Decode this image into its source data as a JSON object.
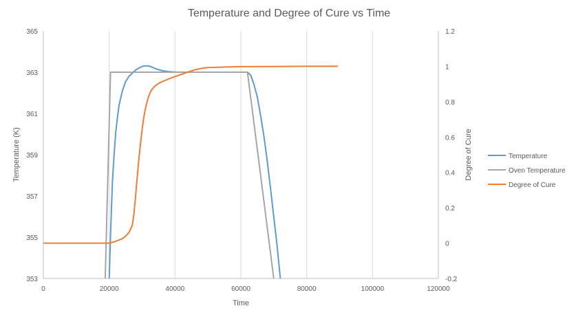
{
  "chart_data": {
    "type": "line",
    "title": "Temperature and Degree of Cure vs Time",
    "xlabel": "Time",
    "ylabel": "Temperature (K)",
    "y2label": "Degree of Cure",
    "xlim": [
      0,
      120000
    ],
    "ylim": [
      353,
      365
    ],
    "y2lim": [
      -0.2,
      1.2
    ],
    "xticks": [
      0,
      20000,
      40000,
      60000,
      80000,
      100000,
      120000
    ],
    "yticks": [
      353,
      355,
      357,
      359,
      361,
      363,
      365
    ],
    "y2ticks": [
      -0.2,
      0,
      0.2,
      0.4,
      0.6,
      0.8,
      1,
      1.2
    ],
    "grid": "vertical",
    "legend_position": "right",
    "series": [
      {
        "name": "Temperature",
        "axis": "left",
        "color": "#5b9bd5",
        "x": [
          20000,
          20500,
          21000,
          21500,
          22000,
          22500,
          23000,
          24000,
          25000,
          26000,
          27000,
          28000,
          29000,
          30000,
          31000,
          32000,
          33000,
          34000,
          36000,
          38000,
          40000,
          45000,
          50000,
          55000,
          60000,
          62000,
          63000,
          64000,
          65000,
          66000,
          67000,
          68000,
          69000,
          70000,
          71000,
          72000
        ],
        "values": [
          353,
          355.6,
          357.7,
          359.0,
          360.1,
          360.8,
          361.4,
          362.1,
          362.55,
          362.8,
          362.95,
          363.1,
          363.2,
          363.28,
          363.31,
          363.3,
          363.25,
          363.17,
          363.08,
          363.03,
          363.01,
          363.0,
          363.0,
          363.0,
          363.0,
          363.0,
          362.85,
          362.4,
          361.8,
          360.9,
          359.9,
          358.7,
          357.4,
          356.0,
          354.6,
          353
        ]
      },
      {
        "name": "Oven Temperature",
        "axis": "left",
        "color": "#a5a5a5",
        "x": [
          18800,
          20400,
          62000,
          70000
        ],
        "values": [
          353,
          363,
          363,
          353
        ]
      },
      {
        "name": "Degree of Cure",
        "axis": "right",
        "color": "#ed7d31",
        "x": [
          0,
          20000,
          22000,
          24000,
          25000,
          26000,
          27000,
          27500,
          28000,
          28500,
          29000,
          29500,
          30000,
          30500,
          31000,
          31500,
          32000,
          32500,
          33000,
          33500,
          34000,
          35000,
          36000,
          37000,
          38000,
          40000,
          42000,
          44000,
          46000,
          48000,
          50000,
          55000,
          60000,
          70000,
          80000,
          89500
        ],
        "values": [
          0,
          0,
          0.01,
          0.025,
          0.04,
          0.06,
          0.1,
          0.16,
          0.26,
          0.37,
          0.47,
          0.56,
          0.64,
          0.71,
          0.76,
          0.8,
          0.83,
          0.855,
          0.87,
          0.88,
          0.89,
          0.903,
          0.913,
          0.92,
          0.928,
          0.942,
          0.955,
          0.968,
          0.98,
          0.988,
          0.993,
          0.996,
          0.998,
          0.999,
          1.0,
          1.0
        ]
      }
    ]
  }
}
